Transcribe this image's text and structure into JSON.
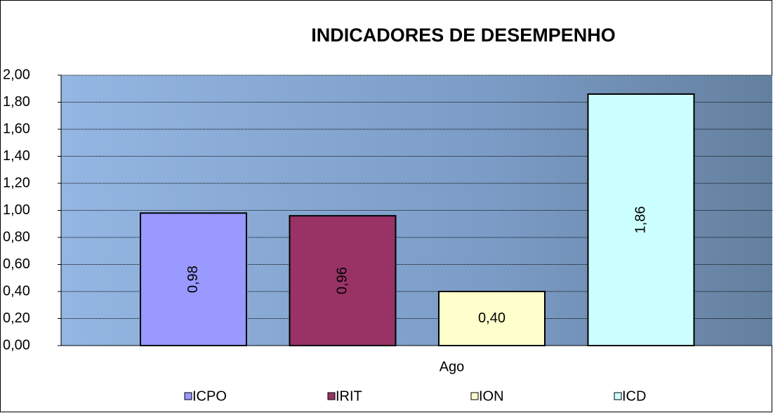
{
  "chart_data": {
    "type": "bar",
    "title": "INDICADORES DE DESEMPENHO",
    "categories": [
      "Ago"
    ],
    "series": [
      {
        "name": "ICPO",
        "color": "#9999ff",
        "values": [
          0.98
        ],
        "value_labels": [
          "0,98"
        ]
      },
      {
        "name": "IRIT",
        "color": "#993366",
        "values": [
          0.96
        ],
        "value_labels": [
          "0,96"
        ]
      },
      {
        "name": "ION",
        "color": "#ffffcc",
        "values": [
          0.4
        ],
        "value_labels": [
          "0,40"
        ]
      },
      {
        "name": "ICD",
        "color": "#ccffff",
        "values": [
          1.86
        ],
        "value_labels": [
          "1,86"
        ]
      }
    ],
    "ylim": [
      0,
      2
    ],
    "yticks": [
      {
        "value": 0,
        "label": "0,00"
      },
      {
        "value": 0.2,
        "label": "0,20"
      },
      {
        "value": 0.4,
        "label": "0,40"
      },
      {
        "value": 0.6,
        "label": "0,60"
      },
      {
        "value": 0.8,
        "label": "0,80"
      },
      {
        "value": 1,
        "label": "1,00"
      },
      {
        "value": 1.2,
        "label": "1,20"
      },
      {
        "value": 1.4,
        "label": "1,40"
      },
      {
        "value": 1.6,
        "label": "1,60"
      },
      {
        "value": 1.8,
        "label": "1,80"
      },
      {
        "value": 2,
        "label": "2,00"
      }
    ],
    "grid": true,
    "legend": "bottom"
  }
}
